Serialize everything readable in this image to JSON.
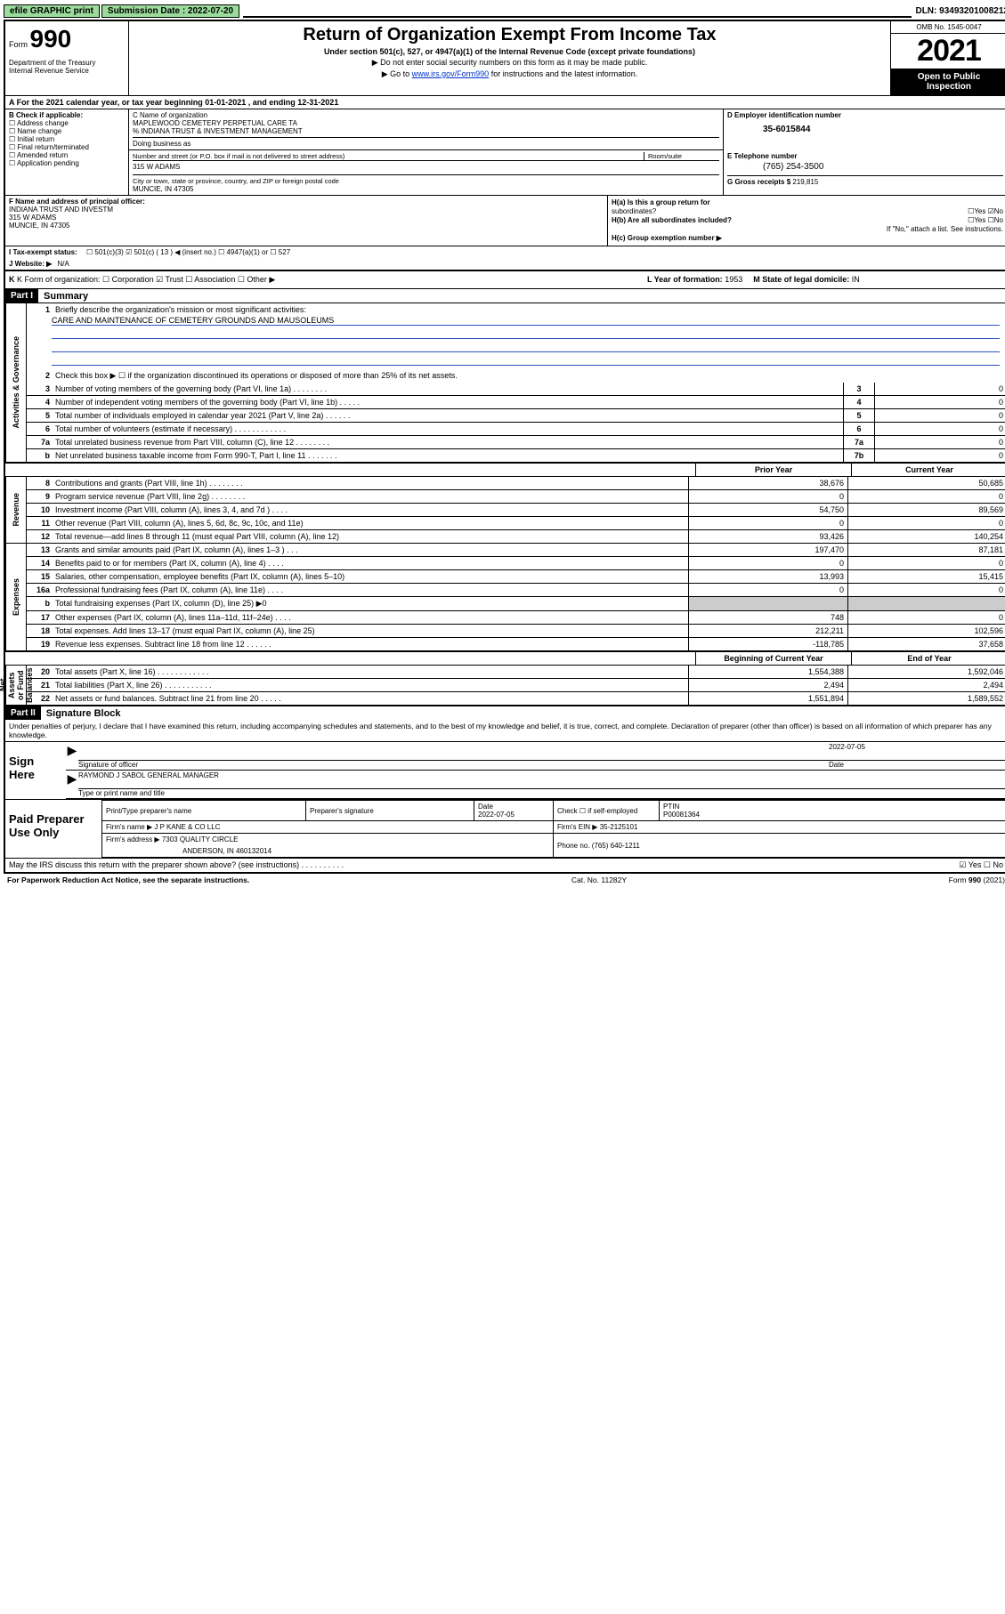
{
  "topbar": {
    "efile_label": "efile GRAPHIC print",
    "submission_label": "Submission Date : 2022-07-20",
    "dln": "DLN: 93493201008212"
  },
  "header": {
    "form_label": "Form",
    "form_number": "990",
    "dept": "Department of the Treasury\nInternal Revenue Service",
    "title": "Return of Organization Exempt From Income Tax",
    "sub1": "Under section 501(c), 527, or 4947(a)(1) of the Internal Revenue Code (except private foundations)",
    "sub2": "▶ Do not enter social security numbers on this form as it may be made public.",
    "sub3_pre": "▶ Go to ",
    "sub3_link": "www.irs.gov/Form990",
    "sub3_post": " for instructions and the latest information.",
    "omb": "OMB No. 1545-0047",
    "year": "2021",
    "open_inspect": "Open to Public Inspection"
  },
  "row_a": "A For the 2021 calendar year, or tax year beginning 01-01-2021   , and ending 12-31-2021",
  "col_b": {
    "title": "B Check if applicable:",
    "items": [
      "Address change",
      "Name change",
      "Initial return",
      "Final return/terminated",
      "Amended return",
      "Application pending"
    ]
  },
  "col_c": {
    "name_label": "C Name of organization",
    "name1": "MAPLEWOOD CEMETERY PERPETUAL CARE TA",
    "name2": "% INDIANA TRUST & INVESTMENT MANAGEMENT",
    "dba_label": "Doing business as",
    "street_label": "Number and street (or P.O. box if mail is not delivered to street address)",
    "suite_label": "Room/suite",
    "street": "315 W ADAMS",
    "city_label": "City or town, state or province, country, and ZIP or foreign postal code",
    "city": "MUNCIE, IN  47305"
  },
  "col_d": {
    "label": "D Employer identification number",
    "ein": "35-6015844"
  },
  "col_e": {
    "label": "E Telephone number",
    "phone": "(765) 254-3500"
  },
  "col_g": {
    "label": "G Gross receipts $",
    "val": "219,815"
  },
  "col_f": {
    "label": "F Name and address of principal officer:",
    "name": "INDIANA TRUST AND INVESTM",
    "addr1": "315 W ADAMS",
    "addr2": "MUNCIE, IN  47305"
  },
  "col_h": {
    "ha_lbl": "H(a)  Is this a group return for",
    "ha_lbl2": "subordinates?",
    "ha_yn": "☐Yes ☑No",
    "hb_lbl": "H(b)  Are all subordinates included?",
    "hb_yn": "☐Yes ☐No",
    "hb_note": "If \"No,\" attach a list. See instructions.",
    "hc_lbl": "H(c)  Group exemption number ▶"
  },
  "row_i": {
    "label": "I   Tax-exempt status:",
    "opts": "☐ 501(c)(3)   ☑ 501(c) ( 13 ) ◀ (insert no.)   ☐ 4947(a)(1) or   ☐ 527"
  },
  "row_j": {
    "label": "J   Website: ▶",
    "val": "N/A"
  },
  "row_k": {
    "label": "K Form of organization:  ☐ Corporation  ☑ Trust  ☐ Association  ☐ Other ▶",
    "l_label": "L Year of formation:",
    "l_val": "1953",
    "m_label": "M State of legal domicile:",
    "m_val": "IN"
  },
  "part1": {
    "hdr": "Part I",
    "title": "Summary",
    "q1": "Briefly describe the organization's mission or most significant activities:",
    "mission": "CARE AND MAINTENANCE OF CEMETERY GROUNDS AND MAUSOLEUMS",
    "q2": "Check this box ▶ ☐  if the organization discontinued its operations or disposed of more than 25% of its net assets.",
    "lines_gov": [
      {
        "n": "3",
        "t": "Number of voting members of the governing body (Part VI, line 1a)  .   .   .   .   .   .   .   .",
        "b": "3",
        "v": "0"
      },
      {
        "n": "4",
        "t": "Number of independent voting members of the governing body (Part VI, line 1b)   .   .   .   .   .",
        "b": "4",
        "v": "0"
      },
      {
        "n": "5",
        "t": "Total number of individuals employed in calendar year 2021 (Part V, line 2a)   .   .   .   .   .   .",
        "b": "5",
        "v": "0"
      },
      {
        "n": "6",
        "t": "Total number of volunteers (estimate if necessary)   .   .   .   .   .   .   .   .   .   .   .   .",
        "b": "6",
        "v": "0"
      },
      {
        "n": "7a",
        "t": "Total unrelated business revenue from Part VIII, column (C), line 12   .   .   .   .   .   .   .   .",
        "b": "7a",
        "v": "0"
      },
      {
        "n": "b",
        "t": "Net unrelated business taxable income from Form 990-T, Part I, line 11   .   .   .   .   .   .   .",
        "b": "7b",
        "v": "0"
      }
    ],
    "col_hdrs": {
      "prior": "Prior Year",
      "current": "Current Year"
    },
    "lines_rev": [
      {
        "n": "8",
        "t": "Contributions and grants (Part VIII, line 1h)   .   .   .   .   .   .   .   .",
        "p": "38,676",
        "c": "50,685"
      },
      {
        "n": "9",
        "t": "Program service revenue (Part VIII, line 2g)    .   .   .   .   .   .   .   .",
        "p": "0",
        "c": "0"
      },
      {
        "n": "10",
        "t": "Investment income (Part VIII, column (A), lines 3, 4, and 7d )    .   .   .   .",
        "p": "54,750",
        "c": "89,569"
      },
      {
        "n": "11",
        "t": "Other revenue (Part VIII, column (A), lines 5, 6d, 8c, 9c, 10c, and 11e)",
        "p": "0",
        "c": "0"
      },
      {
        "n": "12",
        "t": "Total revenue—add lines 8 through 11 (must equal Part VIII, column (A), line 12)",
        "p": "93,426",
        "c": "140,254"
      }
    ],
    "lines_exp": [
      {
        "n": "13",
        "t": "Grants and similar amounts paid (Part IX, column (A), lines 1–3 )   .   .   .",
        "p": "197,470",
        "c": "87,181"
      },
      {
        "n": "14",
        "t": "Benefits paid to or for members (Part IX, column (A), line 4)   .   .   .   .",
        "p": "0",
        "c": "0"
      },
      {
        "n": "15",
        "t": "Salaries, other compensation, employee benefits (Part IX, column (A), lines 5–10)",
        "p": "13,993",
        "c": "15,415"
      },
      {
        "n": "16a",
        "t": "Professional fundraising fees (Part IX, column (A), line 11e)   .   .   .   .",
        "p": "0",
        "c": "0"
      },
      {
        "n": "b",
        "t": "Total fundraising expenses (Part IX, column (D), line 25) ▶0",
        "p": "SHADE",
        "c": "SHADE"
      },
      {
        "n": "17",
        "t": "Other expenses (Part IX, column (A), lines 11a–11d, 11f–24e)   .   .   .   .",
        "p": "748",
        "c": "0"
      },
      {
        "n": "18",
        "t": "Total expenses. Add lines 13–17 (must equal Part IX, column (A), line 25)",
        "p": "212,211",
        "c": "102,596"
      },
      {
        "n": "19",
        "t": "Revenue less expenses. Subtract line 18 from line 12   .   .   .   .   .   .",
        "p": "-118,785",
        "c": "37,658"
      }
    ],
    "col_hdrs2": {
      "beg": "Beginning of Current Year",
      "end": "End of Year"
    },
    "lines_na": [
      {
        "n": "20",
        "t": "Total assets (Part X, line 16)   .   .   .   .   .   .   .   .   .   .   .   .",
        "p": "1,554,388",
        "c": "1,592,046"
      },
      {
        "n": "21",
        "t": "Total liabilities (Part X, line 26)   .   .   .   .   .   .   .   .   .   .   .",
        "p": "2,494",
        "c": "2,494"
      },
      {
        "n": "22",
        "t": "Net assets or fund balances. Subtract line 21 from line 20   .   .   .   .   .",
        "p": "1,551,894",
        "c": "1,589,552"
      }
    ],
    "vlabels": {
      "gov": "Activities & Governance",
      "rev": "Revenue",
      "exp": "Expenses",
      "na": "Net Assets or Fund Balances"
    }
  },
  "part2": {
    "hdr": "Part II",
    "title": "Signature Block",
    "declare": "Under penalties of perjury, I declare that I have examined this return, including accompanying schedules and statements, and to the best of my knowledge and belief, it is true, correct, and complete. Declaration of preparer (other than officer) is based on all information of which preparer has any knowledge.",
    "sign_here": "Sign Here",
    "sig_officer_lbl": "Signature of officer",
    "sig_date": "2022-07-05",
    "sig_date_lbl": "Date",
    "officer_name": "RAYMOND J SABOL GENERAL MANAGER",
    "officer_name_lbl": "Type or print name and title",
    "paid_lbl": "Paid Preparer Use Only",
    "pt_name_lbl": "Print/Type preparer's name",
    "pp_sig_lbl": "Preparer's signature",
    "pp_date_lbl": "Date",
    "pp_date": "2022-07-05",
    "pp_check_lbl": "Check ☐ if self-employed",
    "ptin_lbl": "PTIN",
    "ptin": "P00081364",
    "firm_name_lbl": "Firm's name    ▶",
    "firm_name": "J P KANE & CO LLC",
    "firm_ein_lbl": "Firm's EIN ▶",
    "firm_ein": "35-2125101",
    "firm_addr_lbl": "Firm's address ▶",
    "firm_addr1": "7303 QUALITY CIRCLE",
    "firm_addr2": "ANDERSON, IN  460132014",
    "firm_phone_lbl": "Phone no.",
    "firm_phone": "(765) 640-1211",
    "may_irs": "May the IRS discuss this return with the preparer shown above? (see instructions)   .   .   .   .   .   .   .   .   .   .",
    "may_irs_yn": "☑ Yes  ☐ No"
  },
  "footer": {
    "pra": "For Paperwork Reduction Act Notice, see the separate instructions.",
    "cat": "Cat. No. 11282Y",
    "form": "Form 990 (2021)"
  }
}
